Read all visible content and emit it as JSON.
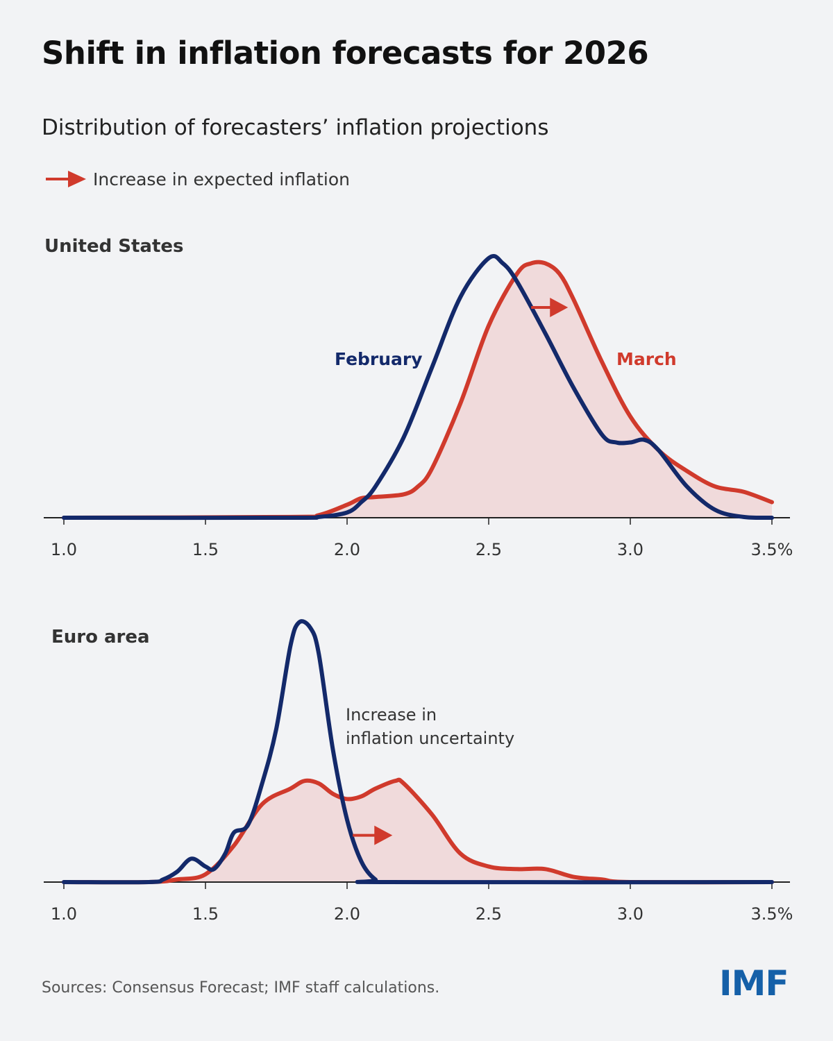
{
  "title": "Shift in inflation forecasts for 2026",
  "subtitle": "Distribution of forecasters’ inflation projections",
  "legend": {
    "label": "Increase in expected inflation",
    "icon": "red-right-arrow-icon"
  },
  "colors": {
    "february": "#13296a",
    "march": "#d03a2c",
    "march_fill": "#f0dadb",
    "background": "#f2f3f5",
    "logo": "#1560a8"
  },
  "source": "Sources: Consensus Forecast; IMF staff calculations.",
  "logo": "IMF",
  "chart_data": [
    {
      "type": "area",
      "title": "United States",
      "xlabel": "",
      "ylabel": "",
      "xlim": [
        1.0,
        3.5
      ],
      "x_ticks": [
        "1.0",
        "1.5",
        "2.0",
        "2.5",
        "3.0",
        "3.5%"
      ],
      "x_tick_values": [
        1.0,
        1.5,
        2.0,
        2.5,
        3.0,
        3.5
      ],
      "grid": false,
      "y_axis": "unlabeled relative density",
      "series": [
        {
          "name": "February",
          "filled": false,
          "x": [
            1.0,
            1.8,
            1.9,
            2.0,
            2.05,
            2.1,
            2.2,
            2.3,
            2.4,
            2.5,
            2.55,
            2.6,
            2.7,
            2.8,
            2.9,
            2.95,
            3.0,
            3.05,
            3.1,
            3.2,
            3.3,
            3.4,
            3.5
          ],
          "y": [
            0,
            0,
            0.003,
            0.02,
            0.06,
            0.12,
            0.31,
            0.58,
            0.85,
            1.0,
            0.98,
            0.91,
            0.71,
            0.5,
            0.32,
            0.29,
            0.29,
            0.3,
            0.26,
            0.12,
            0.03,
            0.003,
            0
          ]
        },
        {
          "name": "March",
          "filled": true,
          "x": [
            1.0,
            1.8,
            1.9,
            2.0,
            2.05,
            2.1,
            2.2,
            2.25,
            2.3,
            2.4,
            2.5,
            2.6,
            2.65,
            2.7,
            2.75,
            2.8,
            2.9,
            3.0,
            3.1,
            3.2,
            3.3,
            3.4,
            3.5
          ],
          "y": [
            0,
            0.003,
            0.01,
            0.05,
            0.075,
            0.08,
            0.09,
            0.12,
            0.19,
            0.44,
            0.74,
            0.94,
            0.98,
            0.98,
            0.94,
            0.84,
            0.6,
            0.39,
            0.26,
            0.18,
            0.12,
            0.1,
            0.06
          ]
        }
      ],
      "annotations": [
        {
          "type": "arrow",
          "from": 2.65,
          "to": 2.78,
          "level": 0.81
        }
      ]
    },
    {
      "type": "area",
      "title": "Euro area",
      "xlabel": "",
      "ylabel": "",
      "xlim": [
        1.0,
        3.5
      ],
      "x_ticks": [
        "1.0",
        "1.5",
        "2.0",
        "2.5",
        "3.0",
        "3.5%"
      ],
      "x_tick_values": [
        1.0,
        1.5,
        2.0,
        2.5,
        3.0,
        3.5
      ],
      "grid": false,
      "y_axis": "unlabeled relative density",
      "series": [
        {
          "name": "February",
          "filled": false,
          "x": [
            1.0,
            1.3,
            1.35,
            1.4,
            1.45,
            1.5,
            1.53,
            1.57,
            1.6,
            1.65,
            1.7,
            1.75,
            1.8,
            1.83,
            1.87,
            1.9,
            1.95,
            2.0,
            2.05,
            2.1,
            2.15,
            3.5
          ],
          "y": [
            0,
            0,
            0.01,
            0.04,
            0.09,
            0.06,
            0.05,
            0.11,
            0.19,
            0.22,
            0.38,
            0.59,
            0.91,
            1.0,
            0.98,
            0.88,
            0.51,
            0.24,
            0.08,
            0.01,
            0,
            0
          ]
        },
        {
          "name": "March",
          "filled": true,
          "x": [
            1.0,
            1.3,
            1.4,
            1.5,
            1.6,
            1.7,
            1.8,
            1.85,
            1.9,
            1.95,
            2.0,
            2.05,
            2.1,
            2.17,
            2.2,
            2.3,
            2.4,
            2.5,
            2.6,
            2.7,
            2.8,
            2.9,
            3.0,
            3.5
          ],
          "y": [
            0,
            0,
            0.01,
            0.03,
            0.14,
            0.3,
            0.36,
            0.39,
            0.38,
            0.34,
            0.32,
            0.33,
            0.36,
            0.39,
            0.38,
            0.26,
            0.11,
            0.06,
            0.05,
            0.05,
            0.02,
            0.01,
            0,
            0
          ]
        }
      ],
      "annotations": [
        {
          "type": "text",
          "lines": [
            "Increase in",
            "inflation uncertainty"
          ]
        },
        {
          "type": "arrow",
          "from": 2.02,
          "to": 2.16,
          "level": 0.18
        }
      ]
    }
  ]
}
